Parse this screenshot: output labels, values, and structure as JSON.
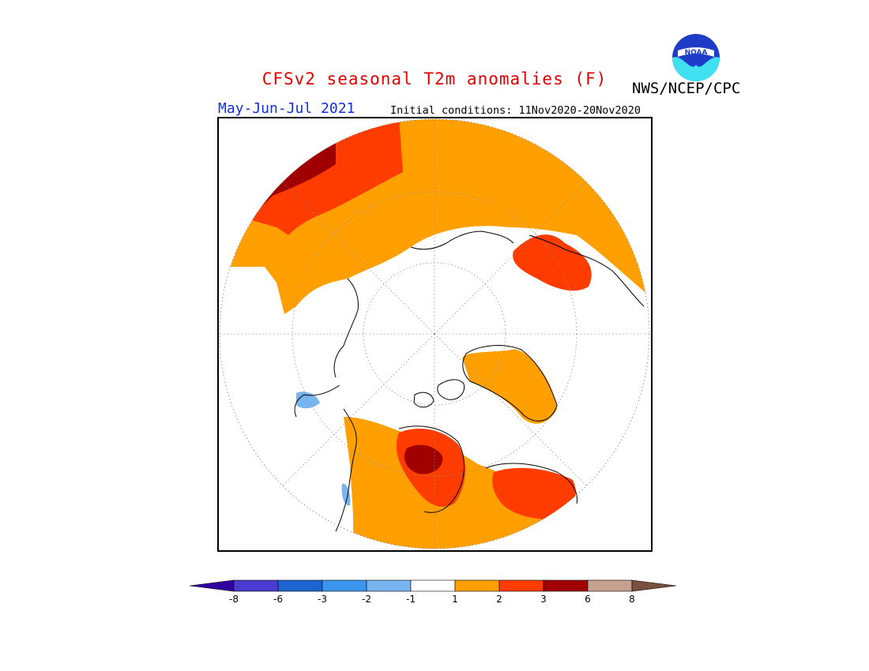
{
  "header": {
    "title": "CFSv2 seasonal T2m anomalies (F)",
    "agency": "NWS/NCEP/CPC",
    "logo_text": "NOAA",
    "season": "May-Jun-Jul 2021",
    "initial_conditions": "Initial conditions: 11Nov2020-20Nov2020"
  },
  "map": {
    "projection": "north-polar-stereographic",
    "variable": "T2m anomaly",
    "units": "F",
    "anomaly_regions": [
      {
        "region": "northern Europe / western Russia",
        "category": "3-6"
      },
      {
        "region": "Scandinavia",
        "category": "2-3"
      },
      {
        "region": "Siberia",
        "category": "1-2"
      },
      {
        "region": "northeastern Siberia / Chukotka",
        "category": "2-3"
      },
      {
        "region": "Greenland",
        "category": "1-2"
      },
      {
        "region": "central Canada",
        "category": "3-6"
      },
      {
        "region": "eastern Canada / Quebec",
        "category": "2-3"
      },
      {
        "region": "western North America",
        "category": "1-2"
      },
      {
        "region": "Alaska coast",
        "category": "-2 to -1"
      }
    ]
  },
  "colorbar": {
    "tick_labels": [
      "-8",
      "-6",
      "-3",
      "-2",
      "-1",
      "1",
      "2",
      "3",
      "6",
      "8"
    ],
    "colors": [
      "#3000a0",
      "#4a3cd0",
      "#1e64d0",
      "#3c96f0",
      "#78b4f0",
      "#ffffff",
      "#ffa000",
      "#ff3c00",
      "#a00000",
      "#c8a090",
      "#785040"
    ]
  }
}
